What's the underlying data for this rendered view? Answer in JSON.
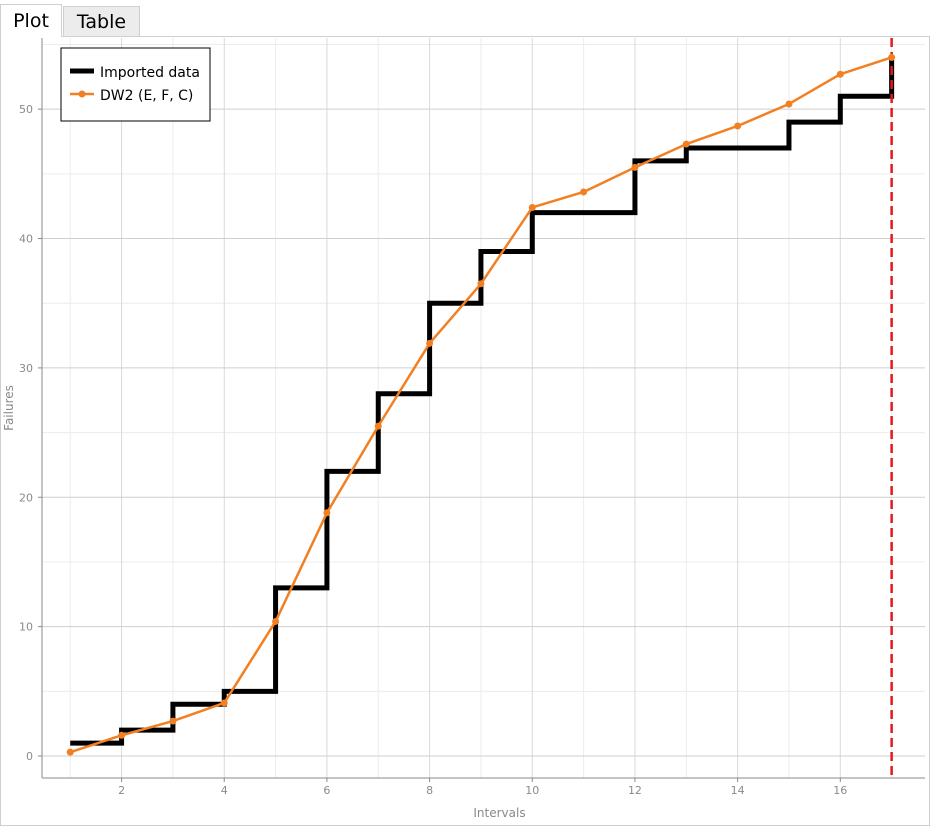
{
  "tabs": [
    {
      "label": "Plot",
      "active": true
    },
    {
      "label": "Table",
      "active": false
    }
  ],
  "chart_data": {
    "type": "line",
    "title": "",
    "xlabel": "Intervals",
    "ylabel": "Failures",
    "xlim": [
      0.45,
      17.65
    ],
    "ylim": [
      -1.7,
      55.5
    ],
    "xticks": [
      2,
      4,
      6,
      8,
      10,
      12,
      14,
      16
    ],
    "yticks": [
      0,
      10,
      20,
      30,
      40,
      50
    ],
    "grid": true,
    "legend_position": "top-left",
    "reference_line": {
      "x": 17,
      "color": "#e31a1c",
      "style": "dashed"
    },
    "series": [
      {
        "name": "Imported data",
        "style": "step",
        "color": "#000000",
        "x": [
          1,
          2,
          3,
          4,
          5,
          6,
          7,
          8,
          9,
          10,
          11,
          12,
          13,
          14,
          15,
          16,
          17
        ],
        "values": [
          1,
          2,
          4,
          5,
          13,
          22,
          28,
          35,
          39,
          42,
          42,
          46,
          47,
          47,
          49,
          51,
          54
        ]
      },
      {
        "name": "DW2 (E, F, C)",
        "style": "line-markers",
        "color": "#f28022",
        "x": [
          1,
          2,
          3,
          4,
          5,
          6,
          7,
          8,
          9,
          10,
          11,
          12,
          13,
          14,
          15,
          16,
          17
        ],
        "values": [
          0.3,
          1.6,
          2.7,
          4.1,
          10.4,
          18.8,
          25.5,
          31.9,
          36.5,
          42.4,
          43.6,
          45.5,
          47.3,
          48.7,
          50.4,
          52.7,
          54.0
        ]
      }
    ]
  }
}
